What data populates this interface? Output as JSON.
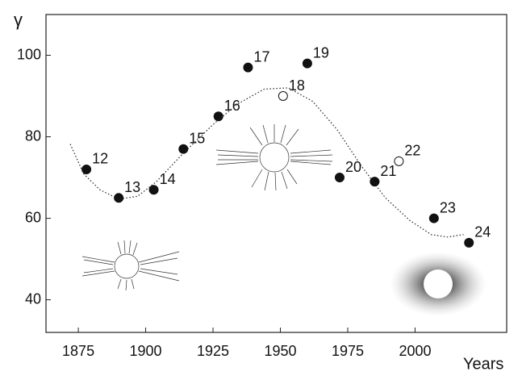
{
  "chart_data": {
    "type": "scatter",
    "y_label": "γ",
    "x_label": "Years",
    "xlim": [
      1863,
      2034
    ],
    "xticks": [
      1875,
      1900,
      1925,
      1950,
      1975,
      2000
    ],
    "ylim": [
      32,
      110
    ],
    "yticks": [
      40,
      60,
      80,
      100
    ],
    "series": [
      {
        "color": "#111111",
        "x": [
          1878,
          1890,
          1903,
          1914,
          1927,
          1938,
          1951,
          1960,
          1972,
          1985,
          1994,
          2007,
          2020
        ],
        "values": [
          72,
          65,
          67,
          77,
          85,
          97,
          90,
          98,
          70,
          69,
          74,
          60,
          54
        ],
        "labels": [
          "12",
          "13",
          "14",
          "15",
          "16",
          "17",
          "18",
          "19",
          "20",
          "21",
          "22",
          "23",
          "24"
        ],
        "open": [
          false,
          false,
          false,
          false,
          false,
          false,
          true,
          false,
          false,
          false,
          true,
          false,
          false
        ]
      },
      {
        "type": "line",
        "color": "#222222",
        "dashed": true,
        "x": [
          1872,
          1877,
          1883,
          1890,
          1897,
          1904,
          1914,
          1925,
          1934,
          1944,
          1953,
          1962,
          1971,
          1980,
          1989,
          1998,
          2006,
          2012,
          2018
        ],
        "values": [
          78.2,
          70.9,
          67,
          64.7,
          65.4,
          69,
          76,
          83,
          88,
          91.7,
          92,
          88.7,
          81.8,
          72.9,
          65,
          59.5,
          56,
          55.4,
          56
        ]
      }
    ]
  }
}
